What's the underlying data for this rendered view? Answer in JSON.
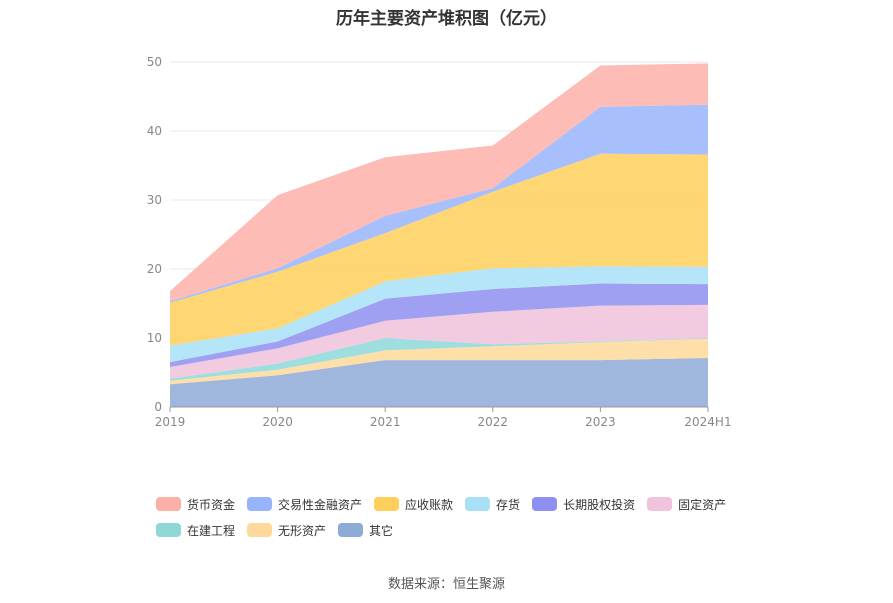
{
  "chart_data": {
    "type": "area",
    "stacked": true,
    "title": "历年主要资产堆积图（亿元）",
    "categories": [
      "2019",
      "2020",
      "2021",
      "2022",
      "2023",
      "2024H1"
    ],
    "ylim": [
      0,
      50
    ],
    "yticks": [
      0,
      10,
      20,
      30,
      40,
      50
    ],
    "grid": true,
    "legend_position": "bottom",
    "series": [
      {
        "name": "其它",
        "color": "#8eaad6",
        "values": [
          3.3,
          4.6,
          6.8,
          6.8,
          6.8,
          7.1
        ]
      },
      {
        "name": "无形资产",
        "color": "#ffd99a",
        "values": [
          0.5,
          0.8,
          1.4,
          2.0,
          2.6,
          2.8
        ]
      },
      {
        "name": "在建工程",
        "color": "#8ed8d8",
        "values": [
          0.3,
          0.9,
          1.8,
          0.3,
          0.1,
          0.1
        ]
      },
      {
        "name": "固定资产",
        "color": "#f0c2dc",
        "values": [
          1.7,
          2.2,
          2.5,
          4.7,
          5.2,
          4.8
        ]
      },
      {
        "name": "长期股权投资",
        "color": "#8f8ff0",
        "values": [
          0.7,
          1.0,
          3.2,
          3.3,
          3.2,
          3.0
        ]
      },
      {
        "name": "存货",
        "color": "#a8e0f7",
        "values": [
          2.4,
          1.9,
          2.5,
          3.0,
          2.5,
          2.5
        ]
      },
      {
        "name": "应收账款",
        "color": "#ffcf5c",
        "values": [
          6.2,
          8.2,
          7.0,
          11.1,
          16.3,
          16.3
        ]
      },
      {
        "name": "交易性金融资产",
        "color": "#98b4fb",
        "values": [
          0.2,
          0.5,
          2.5,
          0.5,
          6.8,
          7.2
        ]
      },
      {
        "name": "货币资金",
        "color": "#fdb0a8",
        "values": [
          1.5,
          10.6,
          8.5,
          6.2,
          6.0,
          6.0
        ]
      }
    ],
    "legend_order": [
      "货币资金",
      "交易性金融资产",
      "应收账款",
      "存货",
      "长期股权投资",
      "固定资产",
      "在建工程",
      "无形资产",
      "其它"
    ]
  },
  "source_text": "数据来源：恒生聚源"
}
